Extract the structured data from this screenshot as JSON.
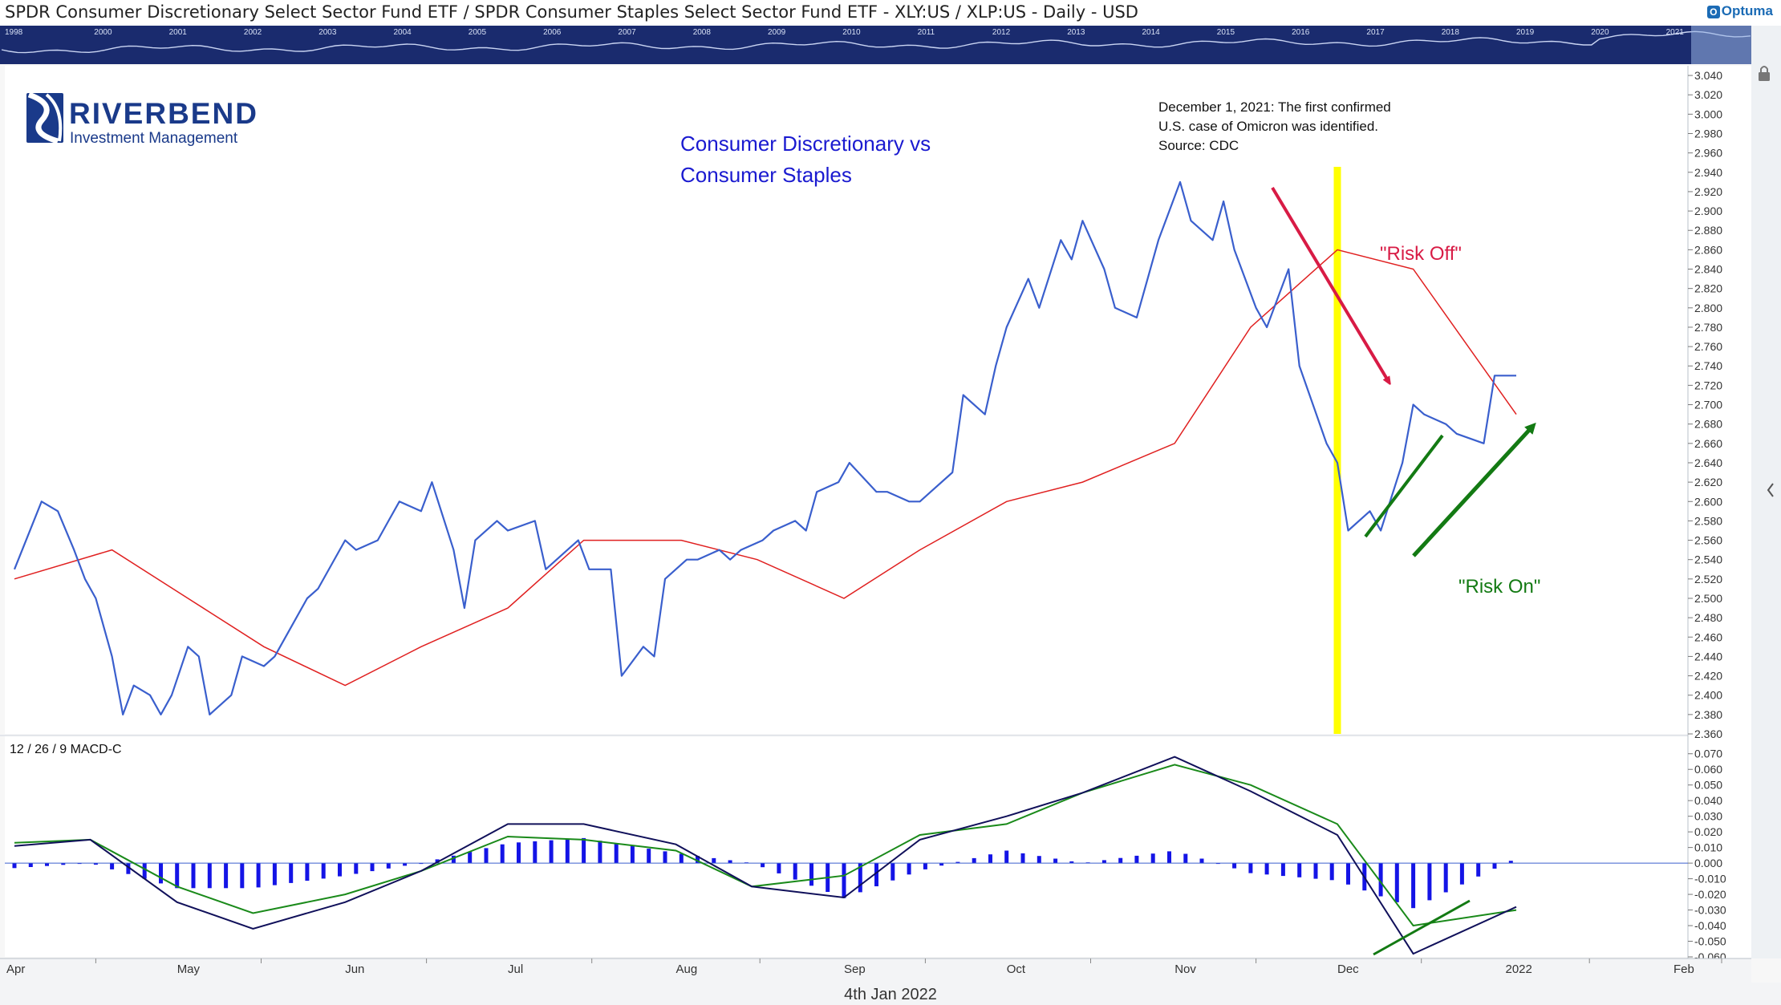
{
  "header": {
    "title": "SPDR Consumer Discretionary Select Sector Fund ETF / SPDR Consumer Staples Select Sector Fund ETF - XLY:US / XLP:US - Daily - USD",
    "brand": "Optuma"
  },
  "overview_years": [
    "1998",
    "2000",
    "2001",
    "2002",
    "2003",
    "2004",
    "2005",
    "2006",
    "2007",
    "2008",
    "2009",
    "2010",
    "2011",
    "2012",
    "2013",
    "2014",
    "2015",
    "2016",
    "2017",
    "2018",
    "2019",
    "2020",
    "2021"
  ],
  "logo": {
    "name": "RIVERBEND",
    "subtitle": "Investment Management"
  },
  "annotations": {
    "chart_heading_1": "Consumer Discretionary vs",
    "chart_heading_2": "Consumer Staples",
    "omicron_1": "December 1, 2021: The first confirmed",
    "omicron_2": "U.S. case of Omicron was identified.",
    "omicron_3": "Source: CDC",
    "risk_off": "\"Risk Off\"",
    "risk_on": "\"Risk On\""
  },
  "footer": {
    "date": "4th Jan 2022"
  },
  "colors": {
    "price": "#3a5fcd",
    "ma": "#e02020",
    "macd": "#10105a",
    "signal": "#1a8a1a",
    "hist": "#1414e6",
    "highlight": "#ffff00",
    "risk_off": "#d81b45",
    "risk_on": "#137a13",
    "heading": "#1a1ad0"
  },
  "chart_data": [
    {
      "type": "line",
      "title": "",
      "x_axis_labels": [
        "Apr",
        "May",
        "Jun",
        "Jul",
        "Aug",
        "Sep",
        "Oct",
        "Nov",
        "Dec",
        "2022",
        "Feb"
      ],
      "y_ticks": [
        "3.040",
        "3.020",
        "3.000",
        "2.980",
        "2.960",
        "2.940",
        "2.920",
        "2.900",
        "2.880",
        "2.860",
        "2.840",
        "2.820",
        "2.800",
        "2.780",
        "2.760",
        "2.740",
        "2.720",
        "2.700",
        "2.680",
        "2.660",
        "2.640",
        "2.620",
        "2.600",
        "2.580",
        "2.560",
        "2.540",
        "2.520",
        "2.500",
        "2.480",
        "2.460",
        "2.440",
        "2.420",
        "2.400",
        "2.380",
        "2.360"
      ],
      "ylim": [
        2.36,
        3.05
      ],
      "highlight_date": "2021-12-01",
      "series": [
        {
          "name": "",
          "x": [
            "2021-04-01",
            "2021-04-06",
            "2021-04-09",
            "2021-04-12",
            "2021-04-14",
            "2021-04-16",
            "2021-04-19",
            "2021-04-21",
            "2021-04-23",
            "2021-04-26",
            "2021-04-28",
            "2021-04-30",
            "2021-05-03",
            "2021-05-05",
            "2021-05-07",
            "2021-05-11",
            "2021-05-13",
            "2021-05-17",
            "2021-05-19",
            "2021-05-21",
            "2021-05-25",
            "2021-05-27",
            "2021-06-01",
            "2021-06-03",
            "2021-06-07",
            "2021-06-09",
            "2021-06-11",
            "2021-06-15",
            "2021-06-17",
            "2021-06-21",
            "2021-06-23",
            "2021-06-25",
            "2021-06-29",
            "2021-07-01",
            "2021-07-06",
            "2021-07-08",
            "2021-07-12",
            "2021-07-14",
            "2021-07-16",
            "2021-07-20",
            "2021-07-22",
            "2021-07-26",
            "2021-07-28",
            "2021-07-30",
            "2021-08-03",
            "2021-08-05",
            "2021-08-09",
            "2021-08-11",
            "2021-08-13",
            "2021-08-17",
            "2021-08-19",
            "2021-08-23",
            "2021-08-25",
            "2021-08-27",
            "2021-08-31",
            "2021-09-02",
            "2021-09-07",
            "2021-09-09",
            "2021-09-13",
            "2021-09-15",
            "2021-09-17",
            "2021-09-21",
            "2021-09-23",
            "2021-09-27",
            "2021-09-29",
            "2021-10-01",
            "2021-10-05",
            "2021-10-07",
            "2021-10-11",
            "2021-10-13",
            "2021-10-15",
            "2021-10-19",
            "2021-10-21",
            "2021-10-25",
            "2021-10-27",
            "2021-10-29",
            "2021-11-02",
            "2021-11-04",
            "2021-11-08",
            "2021-11-10",
            "2021-11-12",
            "2021-11-16",
            "2021-11-18",
            "2021-11-22",
            "2021-11-24",
            "2021-11-29",
            "2021-12-01",
            "2021-12-03",
            "2021-12-07",
            "2021-12-09",
            "2021-12-13",
            "2021-12-15",
            "2021-12-17",
            "2021-12-21",
            "2021-12-23",
            "2021-12-28",
            "2021-12-30",
            "2022-01-03"
          ],
          "values": [
            2.53,
            2.6,
            2.59,
            2.55,
            2.52,
            2.5,
            2.44,
            2.38,
            2.41,
            2.4,
            2.38,
            2.4,
            2.45,
            2.44,
            2.38,
            2.4,
            2.44,
            2.43,
            2.44,
            2.46,
            2.5,
            2.51,
            2.56,
            2.55,
            2.56,
            2.58,
            2.6,
            2.59,
            2.62,
            2.55,
            2.49,
            2.56,
            2.58,
            2.57,
            2.58,
            2.53,
            2.55,
            2.56,
            2.53,
            2.53,
            2.42,
            2.45,
            2.44,
            2.52,
            2.54,
            2.54,
            2.55,
            2.54,
            2.55,
            2.56,
            2.57,
            2.58,
            2.57,
            2.61,
            2.62,
            2.64,
            2.61,
            2.61,
            2.6,
            2.6,
            2.61,
            2.63,
            2.71,
            2.69,
            2.74,
            2.78,
            2.83,
            2.8,
            2.87,
            2.85,
            2.89,
            2.84,
            2.8,
            2.79,
            2.83,
            2.87,
            2.93,
            2.89,
            2.87,
            2.91,
            2.86,
            2.8,
            2.78,
            2.84,
            2.74,
            2.66,
            2.64,
            2.57,
            2.59,
            2.57,
            2.64,
            2.7,
            2.69,
            2.68,
            2.67,
            2.66,
            2.73,
            2.73
          ]
        },
        {
          "name": "",
          "x": [
            "2021-04-01",
            "2021-04-19",
            "2021-05-03",
            "2021-05-17",
            "2021-06-01",
            "2021-06-15",
            "2021-07-01",
            "2021-07-15",
            "2021-08-02",
            "2021-08-16",
            "2021-09-01",
            "2021-09-15",
            "2021-10-01",
            "2021-10-15",
            "2021-11-01",
            "2021-11-15",
            "2021-12-01",
            "2021-12-15",
            "2022-01-03"
          ],
          "values": [
            2.52,
            2.55,
            2.5,
            2.45,
            2.41,
            2.45,
            2.49,
            2.56,
            2.56,
            2.54,
            2.5,
            2.55,
            2.6,
            2.62,
            2.66,
            2.78,
            2.86,
            2.84,
            2.69
          ]
        }
      ]
    },
    {
      "type": "line",
      "title": "12 / 26 / 9 MACD-C",
      "y_ticks": [
        "0.070",
        "0.060",
        "0.050",
        "0.040",
        "0.030",
        "0.020",
        "0.010",
        "0.000",
        "-0.010",
        "-0.020",
        "-0.030",
        "-0.040",
        "-0.050",
        "-0.060"
      ],
      "ylim": [
        -0.06,
        0.075
      ],
      "series": [
        {
          "name": "",
          "x": [
            "2021-04-01",
            "2021-04-15",
            "2021-05-01",
            "2021-05-15",
            "2021-06-01",
            "2021-06-15",
            "2021-07-01",
            "2021-07-15",
            "2021-08-01",
            "2021-08-15",
            "2021-09-01",
            "2021-09-15",
            "2021-10-01",
            "2021-10-15",
            "2021-11-01",
            "2021-11-15",
            "2021-12-01",
            "2021-12-15",
            "2022-01-03"
          ],
          "values": [
            0.011,
            0.015,
            -0.025,
            -0.042,
            -0.025,
            -0.005,
            0.025,
            0.025,
            0.012,
            -0.015,
            -0.022,
            0.015,
            0.03,
            0.045,
            0.068,
            0.046,
            0.018,
            -0.058,
            -0.028
          ]
        },
        {
          "name": "",
          "x": [
            "2021-04-01",
            "2021-04-15",
            "2021-05-01",
            "2021-05-15",
            "2021-06-01",
            "2021-06-15",
            "2021-07-01",
            "2021-07-15",
            "2021-08-01",
            "2021-08-15",
            "2021-09-01",
            "2021-09-15",
            "2021-10-01",
            "2021-10-15",
            "2021-11-01",
            "2021-11-15",
            "2021-12-01",
            "2021-12-15",
            "2022-01-03"
          ],
          "values": [
            0.013,
            0.015,
            -0.015,
            -0.032,
            -0.02,
            -0.005,
            0.017,
            0.015,
            0.008,
            -0.015,
            -0.008,
            0.018,
            0.025,
            0.045,
            0.063,
            0.05,
            0.025,
            -0.04,
            -0.03
          ]
        }
      ]
    }
  ]
}
